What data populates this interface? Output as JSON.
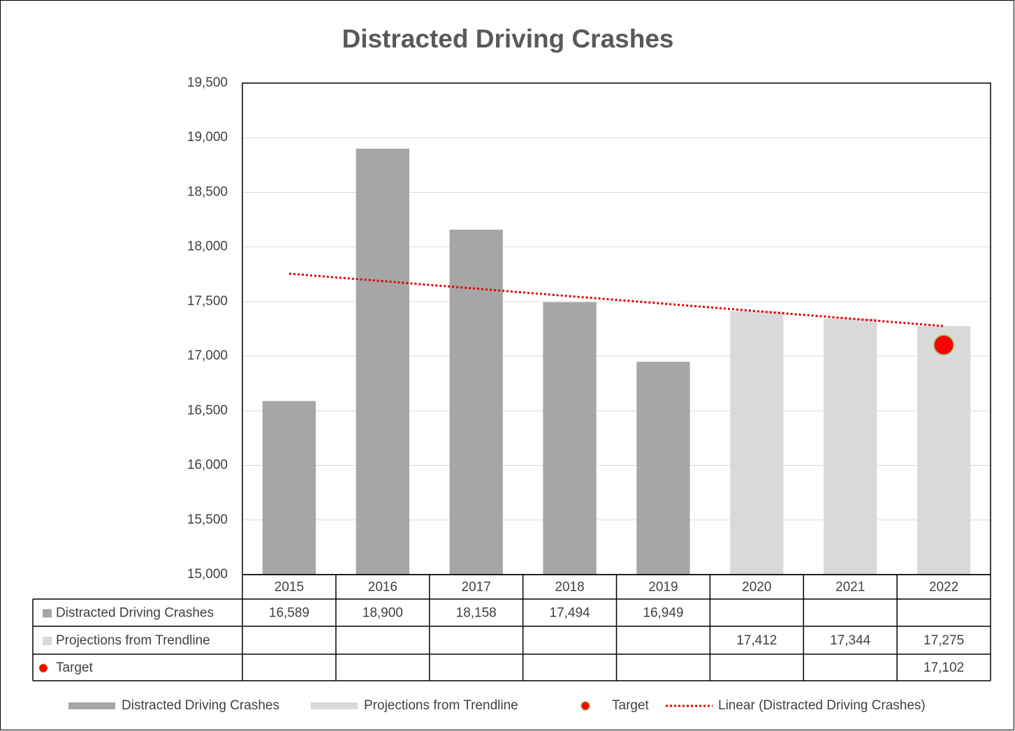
{
  "chart_data": {
    "type": "bar",
    "title": "Distracted Driving Crashes",
    "categories": [
      "2015",
      "2016",
      "2017",
      "2018",
      "2019",
      "2020",
      "2021",
      "2022"
    ],
    "series": [
      {
        "name": "Distracted Driving Crashes",
        "color": "#a6a6a6",
        "values": [
          16589,
          18900,
          18158,
          17494,
          16949,
          null,
          null,
          null
        ],
        "value_labels": [
          "16,589",
          "18,900",
          "18,158",
          "17,494",
          "16,949",
          null,
          null,
          null
        ]
      },
      {
        "name": "Projections from Trendline",
        "color": "#d9d9d9",
        "values": [
          null,
          null,
          null,
          null,
          null,
          17412,
          17344,
          17275
        ],
        "value_labels": [
          null,
          null,
          null,
          null,
          null,
          "17,412",
          "17,344",
          "17,275"
        ]
      },
      {
        "name": "Target",
        "color": "#ff0000",
        "marker": "circle",
        "values": [
          null,
          null,
          null,
          null,
          null,
          null,
          null,
          17102
        ],
        "value_labels": [
          null,
          null,
          null,
          null,
          null,
          null,
          null,
          "17,102"
        ]
      }
    ],
    "trendline": {
      "name": "Linear (Distracted Driving Crashes)",
      "color": "#e00000",
      "values": [
        17755,
        17687,
        17618,
        17549,
        17481,
        17412,
        17344,
        17275
      ]
    },
    "ylim": [
      15000,
      19500
    ],
    "yticks": [
      {
        "value": 15000,
        "label": "15,000"
      },
      {
        "value": 15500,
        "label": "15,500"
      },
      {
        "value": 16000,
        "label": "16,000"
      },
      {
        "value": 16500,
        "label": "16,500"
      },
      {
        "value": 17000,
        "label": "17,000"
      },
      {
        "value": 17500,
        "label": "17,500"
      },
      {
        "value": 18000,
        "label": "18,000"
      },
      {
        "value": 18500,
        "label": "18,500"
      },
      {
        "value": 19000,
        "label": "19,000"
      },
      {
        "value": 19500,
        "label": "19,500"
      }
    ],
    "grid": true,
    "legend": "bottom"
  }
}
